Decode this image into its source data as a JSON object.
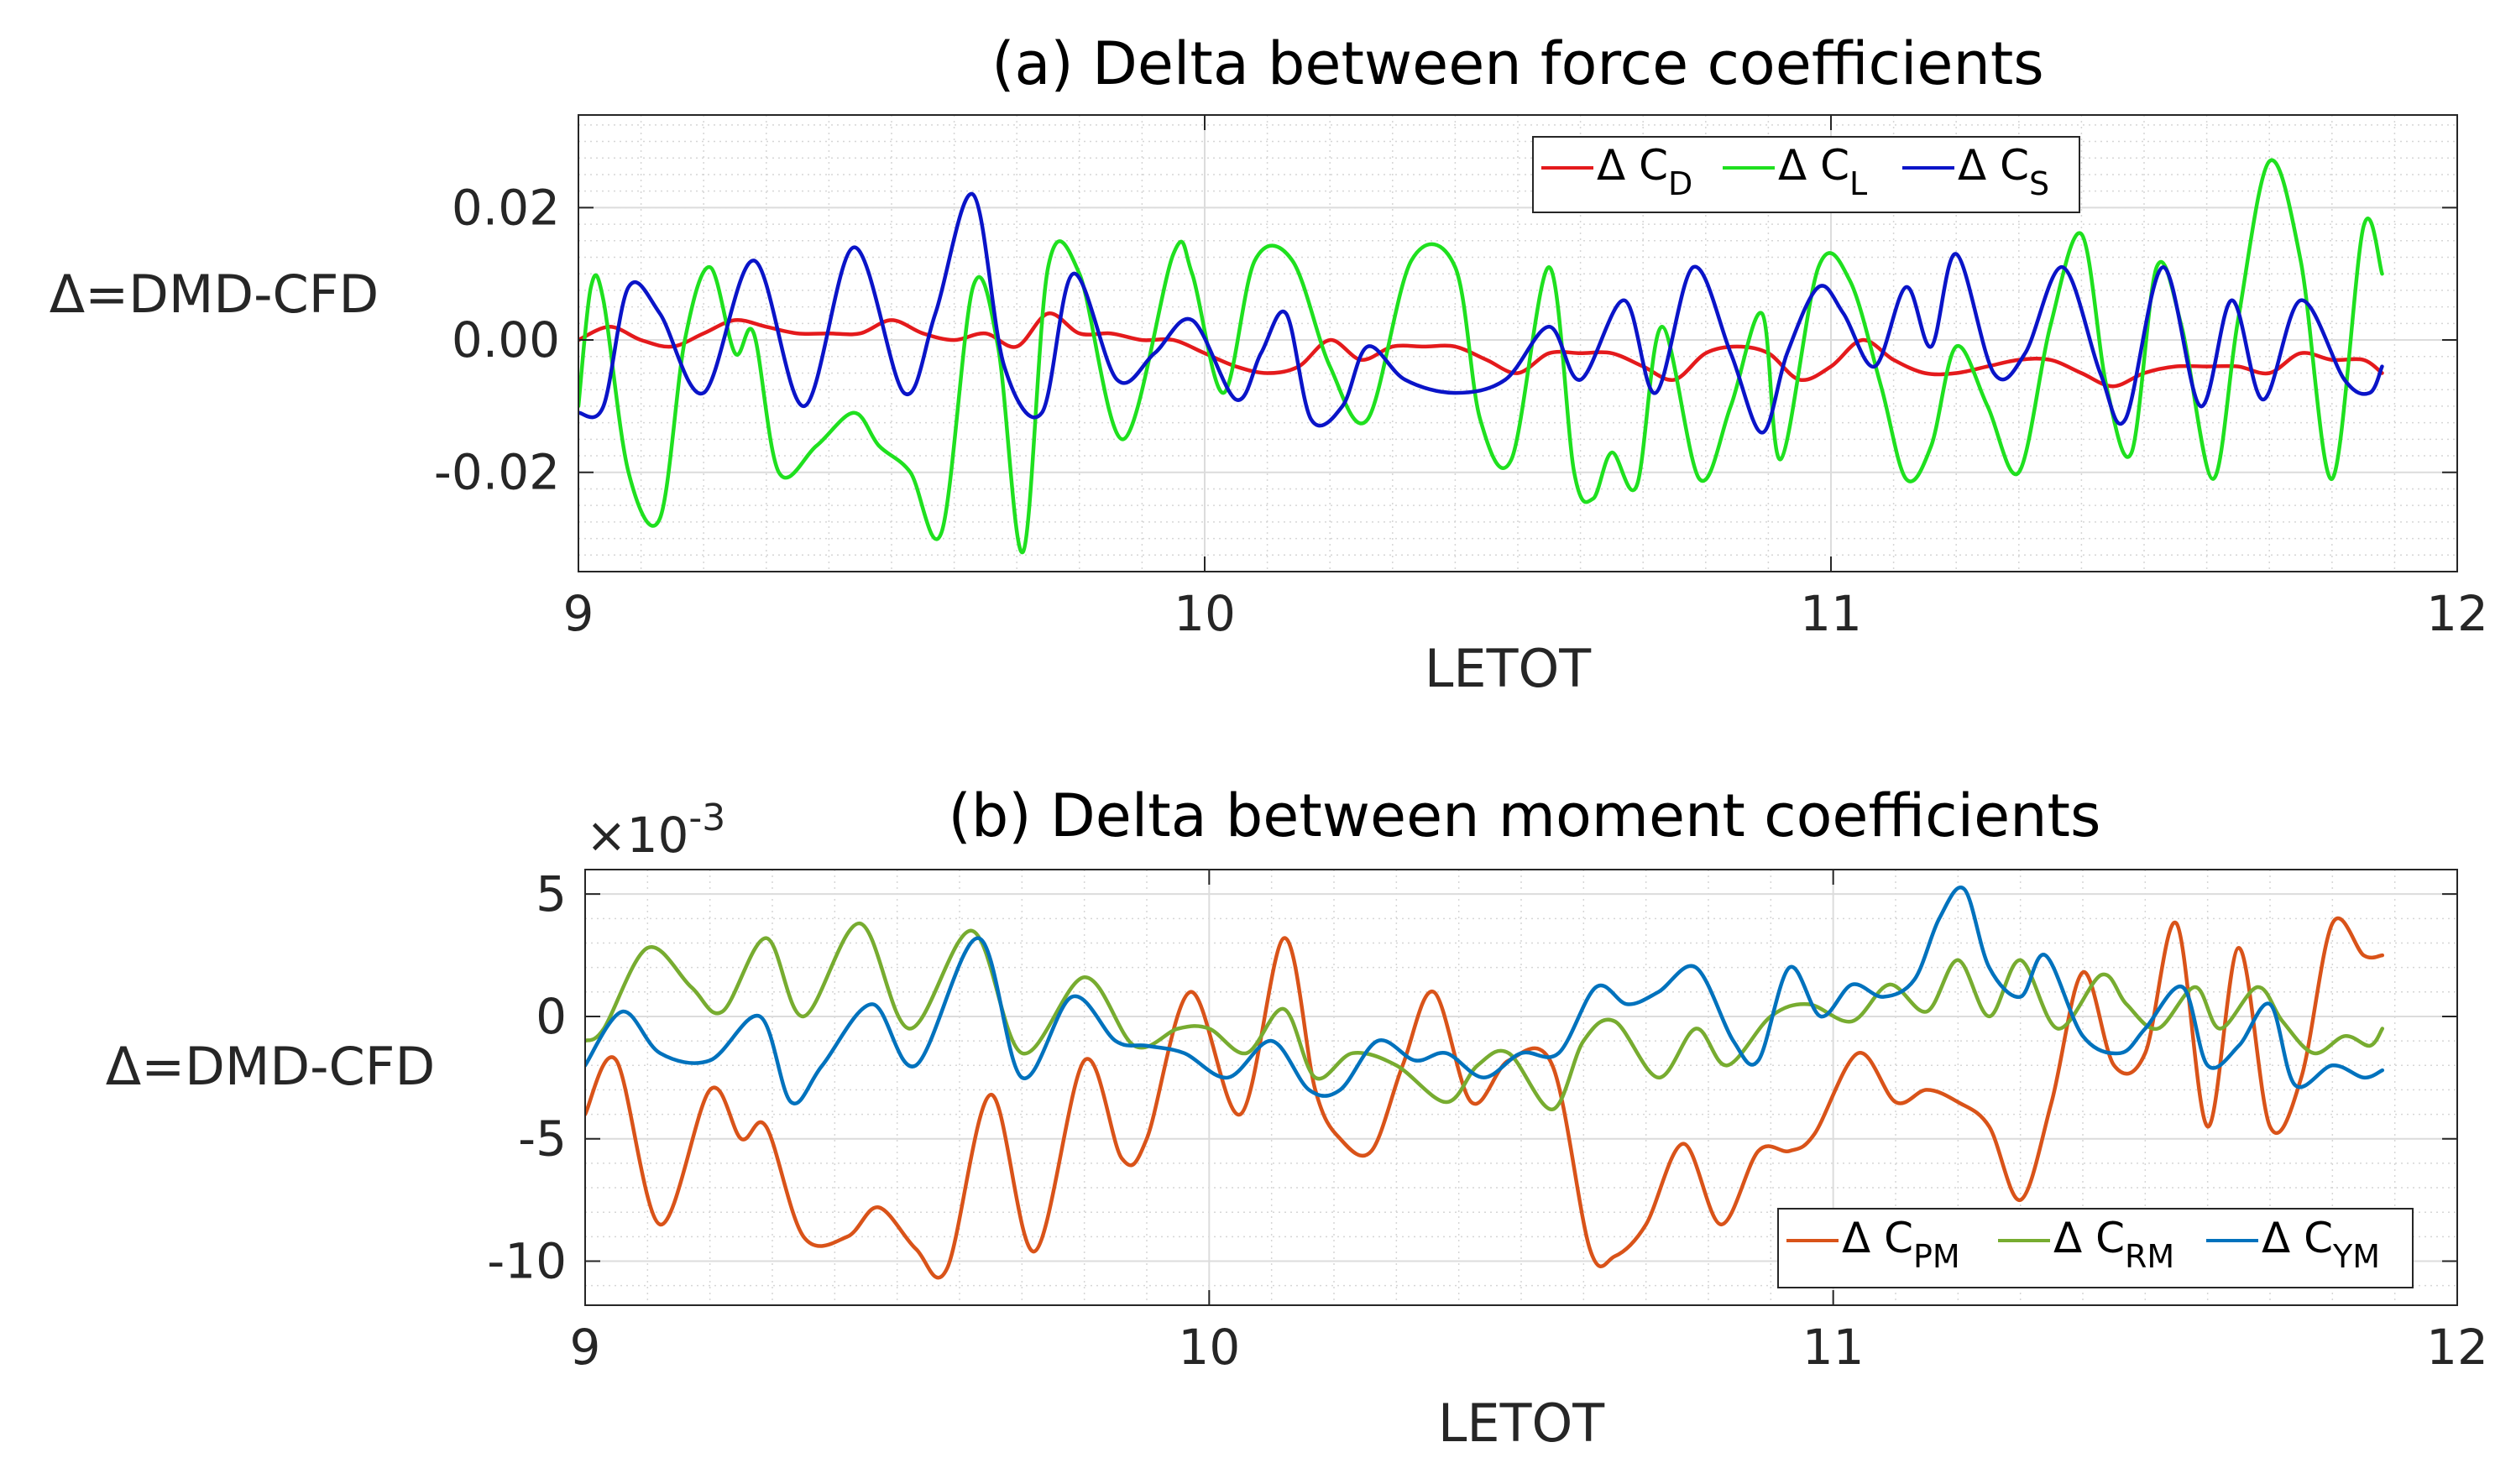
{
  "chart_data": [
    {
      "id": "a",
      "type": "line",
      "title": "(a) Delta between force coefficients",
      "xlabel": "LETOT",
      "ylabel": "Δ=DMD-CFD",
      "xlim": [
        9,
        12
      ],
      "ylim": [
        -0.035,
        0.034
      ],
      "xticks": [
        9,
        10,
        11,
        12
      ],
      "xtick_labels": [
        "9",
        "10",
        "11",
        "12"
      ],
      "yticks": [
        0.02,
        0.0,
        -0.02
      ],
      "ytick_labels": [
        "0.02",
        "0.00",
        "-0.02"
      ],
      "grid": true,
      "minor_grid": true,
      "legend_position": "top-right, horizontal",
      "legend_prefix": "Δ C",
      "series": [
        {
          "name": "Δ C_D",
          "legend_sub": "D",
          "color": "#e41a1c",
          "x": [
            9.0,
            9.05,
            9.1,
            9.15,
            9.2,
            9.25,
            9.3,
            9.35,
            9.4,
            9.45,
            9.5,
            9.55,
            9.6,
            9.65,
            9.7,
            9.75,
            9.8,
            9.85,
            9.9,
            9.95,
            10.0,
            10.05,
            10.1,
            10.15,
            10.2,
            10.25,
            10.3,
            10.35,
            10.4,
            10.45,
            10.5,
            10.55,
            10.6,
            10.65,
            10.7,
            10.75,
            10.8,
            10.85,
            10.9,
            10.95,
            11.0,
            11.05,
            11.1,
            11.15,
            11.2,
            11.25,
            11.3,
            11.35,
            11.4,
            11.45,
            11.5,
            11.55,
            11.6,
            11.65,
            11.7,
            11.75,
            11.8,
            11.85,
            11.88
          ],
          "y": [
            0.0,
            0.002,
            0.0,
            -0.001,
            0.001,
            0.003,
            0.002,
            0.001,
            0.001,
            0.001,
            0.003,
            0.001,
            0.0,
            0.001,
            -0.001,
            0.004,
            0.001,
            0.001,
            0.0,
            0.0,
            -0.002,
            -0.004,
            -0.005,
            -0.004,
            0.0,
            -0.003,
            -0.001,
            -0.001,
            -0.001,
            -0.003,
            -0.005,
            -0.002,
            -0.002,
            -0.002,
            -0.004,
            -0.006,
            -0.002,
            -0.001,
            -0.002,
            -0.006,
            -0.004,
            0.0,
            -0.003,
            -0.005,
            -0.005,
            -0.004,
            -0.003,
            -0.003,
            -0.005,
            -0.007,
            -0.005,
            -0.004,
            -0.004,
            -0.004,
            -0.005,
            -0.002,
            -0.003,
            -0.003,
            -0.005
          ]
        },
        {
          "name": "Δ C_L",
          "legend_sub": "L",
          "color": "#1fe01f",
          "x": [
            9.0,
            9.02,
            9.04,
            9.08,
            9.13,
            9.17,
            9.21,
            9.25,
            9.28,
            9.32,
            9.38,
            9.44,
            9.48,
            9.53,
            9.58,
            9.63,
            9.67,
            9.71,
            9.75,
            9.8,
            9.87,
            9.95,
            9.98,
            10.03,
            10.08,
            10.14,
            10.2,
            10.26,
            10.33,
            10.4,
            10.44,
            10.49,
            10.55,
            10.59,
            10.62,
            10.65,
            10.69,
            10.73,
            10.79,
            10.84,
            10.89,
            10.92,
            10.98,
            11.03,
            11.08,
            11.12,
            11.16,
            11.2,
            11.25,
            11.3,
            11.35,
            11.4,
            11.44,
            11.48,
            11.52,
            11.56,
            11.61,
            11.65,
            11.7,
            11.75,
            11.8,
            11.85,
            11.88
          ],
          "y": [
            -0.01,
            0.008,
            0.006,
            -0.02,
            -0.027,
            0.0,
            0.011,
            -0.002,
            0.001,
            -0.02,
            -0.016,
            -0.011,
            -0.016,
            -0.02,
            -0.029,
            0.008,
            -0.001,
            -0.032,
            0.011,
            0.01,
            -0.015,
            0.013,
            0.01,
            -0.008,
            0.012,
            0.012,
            -0.004,
            -0.012,
            0.012,
            0.011,
            -0.012,
            -0.018,
            0.011,
            -0.02,
            -0.024,
            -0.017,
            -0.022,
            0.002,
            -0.021,
            -0.01,
            0.004,
            -0.018,
            0.011,
            0.009,
            -0.007,
            -0.021,
            -0.016,
            -0.001,
            -0.01,
            -0.02,
            0.002,
            0.016,
            -0.007,
            -0.017,
            0.011,
            0.002,
            -0.021,
            0.003,
            0.027,
            0.012,
            -0.021,
            0.017,
            0.01
          ]
        },
        {
          "name": "Δ C_S",
          "legend_sub": "S",
          "color": "#0a14c8",
          "x": [
            9.0,
            9.04,
            9.08,
            9.13,
            9.2,
            9.28,
            9.36,
            9.44,
            9.52,
            9.57,
            9.63,
            9.68,
            9.74,
            9.79,
            9.86,
            9.92,
            9.98,
            10.05,
            10.09,
            10.13,
            10.17,
            10.22,
            10.26,
            10.32,
            10.4,
            10.48,
            10.55,
            10.6,
            10.67,
            10.72,
            10.78,
            10.84,
            10.89,
            10.93,
            10.98,
            11.02,
            11.07,
            11.12,
            11.16,
            11.2,
            11.26,
            11.31,
            11.37,
            11.43,
            11.47,
            11.53,
            11.59,
            11.64,
            11.69,
            11.75,
            11.82,
            11.86,
            11.88
          ],
          "y": [
            -0.011,
            -0.01,
            0.008,
            0.004,
            -0.008,
            0.012,
            -0.01,
            0.014,
            -0.008,
            0.004,
            0.022,
            -0.004,
            -0.011,
            0.01,
            -0.006,
            -0.002,
            0.003,
            -0.009,
            -0.002,
            0.004,
            -0.012,
            -0.01,
            -0.001,
            -0.006,
            -0.008,
            -0.006,
            0.002,
            -0.006,
            0.006,
            -0.008,
            0.011,
            -0.002,
            -0.014,
            -0.002,
            0.008,
            0.004,
            -0.004,
            0.008,
            -0.001,
            0.013,
            -0.005,
            -0.002,
            0.011,
            -0.005,
            -0.012,
            0.011,
            -0.01,
            0.006,
            -0.009,
            0.006,
            -0.006,
            -0.008,
            -0.004
          ]
        }
      ]
    },
    {
      "id": "b",
      "type": "line",
      "title": "(b) Delta between moment coefficients",
      "xlabel": "LETOT",
      "ylabel": "Δ=DMD-CFD",
      "exponent_label": "×10",
      "exponent_value": "-3",
      "xlim": [
        9,
        12
      ],
      "ylim": [
        -11.8,
        6
      ],
      "xticks": [
        9,
        10,
        11,
        12
      ],
      "xtick_labels": [
        "9",
        "10",
        "11",
        "12"
      ],
      "yticks": [
        5,
        0,
        -5,
        -10
      ],
      "ytick_labels": [
        "5",
        "0",
        "-5",
        "-10"
      ],
      "grid": true,
      "minor_grid": true,
      "legend_position": "bottom-right, horizontal",
      "legend_prefix": "Δ C",
      "series": [
        {
          "name": "Δ C_PM",
          "legend_sub": "PM",
          "color": "#d95319",
          "x": [
            9.0,
            9.05,
            9.12,
            9.2,
            9.25,
            9.29,
            9.35,
            9.42,
            9.47,
            9.53,
            9.58,
            9.65,
            9.72,
            9.8,
            9.86,
            9.9,
            9.97,
            10.05,
            10.12,
            10.17,
            10.21,
            10.26,
            10.31,
            10.36,
            10.42,
            10.48,
            10.55,
            10.61,
            10.65,
            10.7,
            10.76,
            10.82,
            10.88,
            10.93,
            10.97,
            11.04,
            11.1,
            11.15,
            11.2,
            11.25,
            11.3,
            11.35,
            11.4,
            11.45,
            11.5,
            11.55,
            11.6,
            11.65,
            11.7,
            11.75,
            11.8,
            11.85,
            11.88
          ],
          "y": [
            -4.0,
            -1.8,
            -8.5,
            -3.0,
            -5.0,
            -4.5,
            -9.0,
            -9.0,
            -7.8,
            -9.5,
            -10.3,
            -3.2,
            -9.6,
            -1.8,
            -5.8,
            -5.0,
            1.0,
            -4.0,
            3.2,
            -3.0,
            -5.0,
            -5.5,
            -2.0,
            1.0,
            -3.5,
            -1.8,
            -2.0,
            -9.5,
            -9.8,
            -8.5,
            -5.2,
            -8.5,
            -5.5,
            -5.5,
            -4.8,
            -1.5,
            -3.5,
            -3.0,
            -3.5,
            -4.5,
            -7.5,
            -3.5,
            1.8,
            -2.0,
            -1.5,
            3.8,
            -4.5,
            2.8,
            -4.5,
            -2.5,
            3.8,
            2.5,
            2.5
          ]
        },
        {
          "name": "Δ C_RM",
          "legend_sub": "RM",
          "color": "#77ac30",
          "x": [
            9.0,
            9.03,
            9.1,
            9.17,
            9.22,
            9.29,
            9.35,
            9.44,
            9.52,
            9.62,
            9.7,
            9.8,
            9.88,
            9.95,
            10.0,
            10.06,
            10.12,
            10.17,
            10.23,
            10.3,
            10.38,
            10.43,
            10.48,
            10.55,
            10.6,
            10.65,
            10.72,
            10.78,
            10.83,
            10.9,
            10.96,
            11.03,
            11.09,
            11.15,
            11.2,
            11.25,
            11.3,
            11.36,
            11.43,
            11.47,
            11.52,
            11.58,
            11.62,
            11.68,
            11.72,
            11.77,
            11.82,
            11.86,
            11.88
          ],
          "y": [
            -1.0,
            -0.5,
            2.8,
            1.2,
            0.2,
            3.2,
            0.0,
            3.8,
            -0.5,
            3.5,
            -1.5,
            1.6,
            -1.2,
            -0.5,
            -0.5,
            -1.5,
            0.3,
            -2.5,
            -1.5,
            -2.0,
            -3.5,
            -2.0,
            -1.5,
            -3.8,
            -1.0,
            -0.2,
            -2.5,
            -0.5,
            -2.0,
            0.0,
            0.5,
            -0.2,
            1.3,
            0.2,
            2.3,
            0.0,
            2.3,
            -0.5,
            1.7,
            0.5,
            -0.5,
            1.2,
            -0.5,
            1.2,
            -0.2,
            -1.5,
            -0.8,
            -1.2,
            -0.5
          ]
        },
        {
          "name": "Δ C_YM",
          "legend_sub": "YM",
          "color": "#0072bd",
          "x": [
            9.0,
            9.06,
            9.12,
            9.2,
            9.28,
            9.33,
            9.38,
            9.46,
            9.53,
            9.63,
            9.7,
            9.78,
            9.85,
            9.9,
            9.96,
            10.03,
            10.1,
            10.16,
            10.21,
            10.27,
            10.33,
            10.38,
            10.44,
            10.5,
            10.56,
            10.62,
            10.67,
            10.72,
            10.78,
            10.84,
            10.88,
            10.93,
            10.98,
            11.03,
            11.08,
            11.13,
            11.17,
            11.21,
            11.25,
            11.3,
            11.34,
            11.4,
            11.46,
            11.5,
            11.56,
            11.6,
            11.65,
            11.7,
            11.74,
            11.8,
            11.85,
            11.88
          ],
          "y": [
            -2.0,
            0.2,
            -1.5,
            -1.8,
            0.0,
            -3.5,
            -2.0,
            0.5,
            -2.0,
            3.2,
            -2.5,
            0.8,
            -1.0,
            -1.2,
            -1.5,
            -2.5,
            -1.0,
            -3.0,
            -3.0,
            -1.0,
            -1.8,
            -1.5,
            -2.5,
            -1.5,
            -1.5,
            1.2,
            0.5,
            1.0,
            2.0,
            -1.0,
            -1.8,
            2.0,
            0.0,
            1.3,
            0.8,
            1.5,
            4.0,
            5.2,
            2.0,
            0.8,
            2.5,
            -0.8,
            -1.5,
            -0.5,
            1.2,
            -2.0,
            -1.2,
            0.5,
            -2.8,
            -2.0,
            -2.5,
            -2.2
          ]
        }
      ]
    }
  ]
}
